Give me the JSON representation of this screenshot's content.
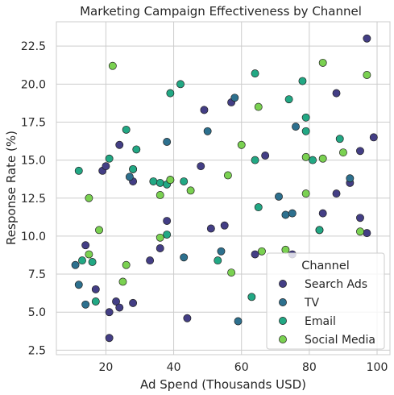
{
  "chart_data": {
    "type": "scatter",
    "title": "Marketing Campaign Effectiveness by Channel",
    "xlabel": "Ad Spend (Thousands USD)",
    "ylabel": "Response Rate (%)",
    "xlim": [
      5.4,
      103.8
    ],
    "ylim": [
      2.2,
      24.1
    ],
    "xticks": [
      20,
      40,
      60,
      80,
      100
    ],
    "yticks": [
      2.5,
      5.0,
      7.5,
      10.0,
      12.5,
      15.0,
      17.5,
      20.0,
      22.5
    ],
    "grid": true,
    "legend": {
      "title": "Channel",
      "placement": "lower-right",
      "entries": [
        "Search Ads",
        "TV",
        "Email",
        "Social Media"
      ]
    },
    "series": [
      {
        "name": "Search Ads",
        "color": "#433e85",
        "points": [
          [
            97,
            23.0
          ],
          [
            99,
            16.5
          ],
          [
            95,
            15.6
          ],
          [
            88,
            19.4
          ],
          [
            92,
            13.5
          ],
          [
            88,
            12.8
          ],
          [
            84,
            11.5
          ],
          [
            95,
            11.2
          ],
          [
            97,
            10.2
          ],
          [
            83,
            10.4
          ],
          [
            75,
            8.8
          ],
          [
            67,
            15.3
          ],
          [
            57,
            18.8
          ],
          [
            49,
            18.3
          ],
          [
            48,
            14.6
          ],
          [
            38,
            11.0
          ],
          [
            36,
            9.2
          ],
          [
            33,
            8.4
          ],
          [
            44,
            4.6
          ],
          [
            55,
            10.7
          ],
          [
            51,
            10.5
          ],
          [
            64,
            8.8
          ],
          [
            28,
            14.4
          ],
          [
            28,
            13.6
          ],
          [
            24,
            16.0
          ],
          [
            19,
            14.3
          ],
          [
            20,
            14.6
          ],
          [
            14,
            9.4
          ],
          [
            17,
            6.5
          ],
          [
            23,
            5.7
          ],
          [
            24,
            5.3
          ],
          [
            28,
            5.6
          ],
          [
            21,
            5.0
          ],
          [
            21,
            3.3
          ]
        ]
      },
      {
        "name": "TV",
        "color": "#2d708e",
        "points": [
          [
            11,
            8.1
          ],
          [
            12,
            6.8
          ],
          [
            14,
            5.5
          ],
          [
            38,
            16.2
          ],
          [
            58,
            19.1
          ],
          [
            50,
            16.9
          ],
          [
            54,
            9.0
          ],
          [
            43,
            8.6
          ],
          [
            59,
            4.4
          ],
          [
            71,
            12.6
          ],
          [
            73,
            11.4
          ],
          [
            75,
            11.5
          ],
          [
            76,
            17.2
          ],
          [
            92,
            13.8
          ],
          [
            27,
            13.9
          ]
        ]
      },
      {
        "name": "Email",
        "color": "#22a884",
        "points": [
          [
            42,
            20.0
          ],
          [
            39,
            19.4
          ],
          [
            36,
            13.5
          ],
          [
            26,
            17.0
          ],
          [
            29,
            15.7
          ],
          [
            21,
            15.1
          ],
          [
            28,
            14.4
          ],
          [
            38,
            13.4
          ],
          [
            43,
            13.6
          ],
          [
            39,
            13.7
          ],
          [
            34,
            13.6
          ],
          [
            38,
            10.1
          ],
          [
            53,
            8.4
          ],
          [
            12,
            14.3
          ],
          [
            13,
            8.4
          ],
          [
            16,
            8.3
          ],
          [
            17,
            5.7
          ],
          [
            63,
            6.0
          ],
          [
            64,
            15.0
          ],
          [
            65,
            11.9
          ],
          [
            64,
            20.7
          ],
          [
            74,
            19.0
          ],
          [
            78,
            20.2
          ],
          [
            79,
            17.8
          ],
          [
            79,
            16.9
          ],
          [
            81,
            15.0
          ],
          [
            83,
            10.4
          ],
          [
            89,
            16.4
          ]
        ]
      },
      {
        "name": "Social Media",
        "color": "#7ad151",
        "points": [
          [
            22,
            21.2
          ],
          [
            15,
            12.5
          ],
          [
            15,
            8.8
          ],
          [
            18,
            10.4
          ],
          [
            25,
            7.0
          ],
          [
            26,
            8.1
          ],
          [
            36,
            12.7
          ],
          [
            36,
            9.9
          ],
          [
            39,
            13.7
          ],
          [
            45,
            13.0
          ],
          [
            56,
            14.0
          ],
          [
            57,
            7.6
          ],
          [
            60,
            16.0
          ],
          [
            65,
            18.5
          ],
          [
            66,
            9.0
          ],
          [
            73,
            9.1
          ],
          [
            79,
            15.2
          ],
          [
            79,
            12.8
          ],
          [
            84,
            21.4
          ],
          [
            84,
            15.1
          ],
          [
            90,
            15.5
          ],
          [
            95,
            10.3
          ],
          [
            97,
            20.6
          ]
        ]
      }
    ]
  }
}
